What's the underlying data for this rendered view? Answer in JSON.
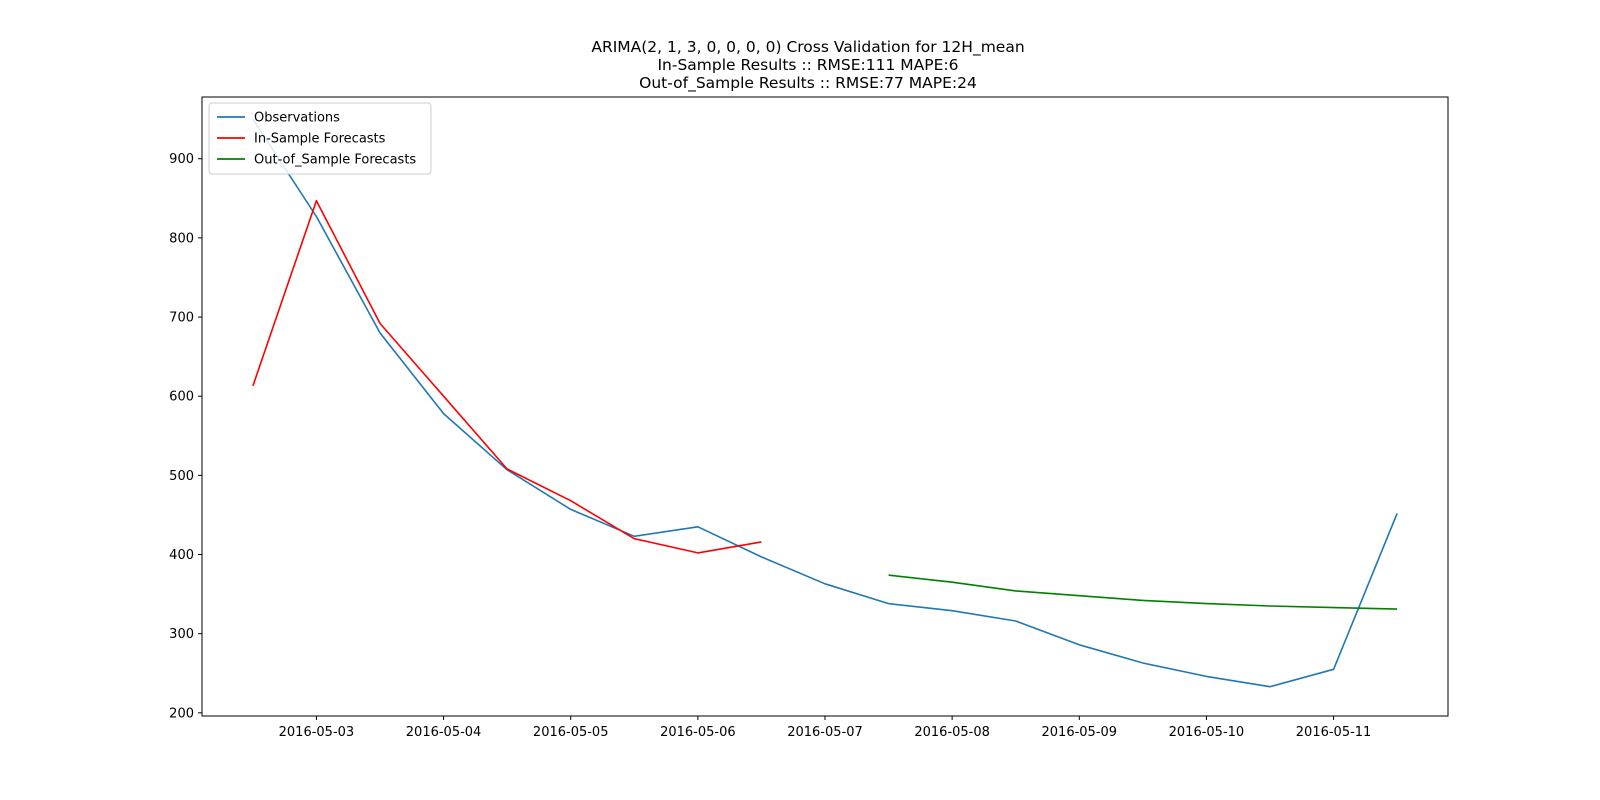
{
  "chart_data": {
    "type": "line",
    "title_lines": [
      "ARIMA(2, 1, 3, 0, 0, 0, 0) Cross Validation for 12H_mean",
      "In-Sample Results :: RMSE:111 MAPE:6",
      "Out-of_Sample Results :: RMSE:77 MAPE:24"
    ],
    "xlabel": "",
    "ylabel": "",
    "x_ticks": [
      "2016-05-03",
      "2016-05-04",
      "2016-05-05",
      "2016-05-06",
      "2016-05-07",
      "2016-05-08",
      "2016-05-09",
      "2016-05-10",
      "2016-05-11"
    ],
    "y_ticks": [
      200,
      300,
      400,
      500,
      600,
      700,
      800,
      900
    ],
    "xlim": [
      "2016-05-02T02:24",
      "2016-05-11T21:36"
    ],
    "ylim": [
      196,
      978
    ],
    "grid": false,
    "legend_position": "upper left",
    "series": [
      {
        "name": "Observations",
        "color": "#1f77b4",
        "x": [
          "2016-05-02T12:00",
          "2016-05-03T00:00",
          "2016-05-03T12:00",
          "2016-05-04T00:00",
          "2016-05-04T12:00",
          "2016-05-05T00:00",
          "2016-05-05T12:00",
          "2016-05-06T00:00",
          "2016-05-06T12:00",
          "2016-05-07T00:00",
          "2016-05-07T12:00",
          "2016-05-08T00:00",
          "2016-05-08T12:00",
          "2016-05-09T00:00",
          "2016-05-09T12:00",
          "2016-05-10T00:00",
          "2016-05-10T12:00",
          "2016-05-11T00:00",
          "2016-05-11T12:00"
        ],
        "values": [
          950,
          827,
          680,
          578,
          507,
          457,
          423,
          435,
          397,
          363,
          338,
          329,
          316,
          286,
          263,
          246,
          233,
          255,
          452
        ]
      },
      {
        "name": "In-Sample Forecasts",
        "color": "#ff0000",
        "x": [
          "2016-05-02T12:00",
          "2016-05-03T00:00",
          "2016-05-03T12:00",
          "2016-05-04T00:00",
          "2016-05-04T12:00",
          "2016-05-05T00:00",
          "2016-05-05T12:00",
          "2016-05-06T00:00",
          "2016-05-06T12:00"
        ],
        "values": [
          613,
          847,
          692,
          600,
          508,
          468,
          420,
          402,
          416
        ]
      },
      {
        "name": "Out-of_Sample Forecasts",
        "color": "#008000",
        "x": [
          "2016-05-07T12:00",
          "2016-05-08T00:00",
          "2016-05-08T12:00",
          "2016-05-09T00:00",
          "2016-05-09T12:00",
          "2016-05-10T00:00",
          "2016-05-10T12:00",
          "2016-05-11T00:00",
          "2016-05-11T12:00"
        ],
        "values": [
          374,
          365,
          354,
          348,
          342,
          338,
          335,
          333,
          331
        ]
      }
    ]
  }
}
